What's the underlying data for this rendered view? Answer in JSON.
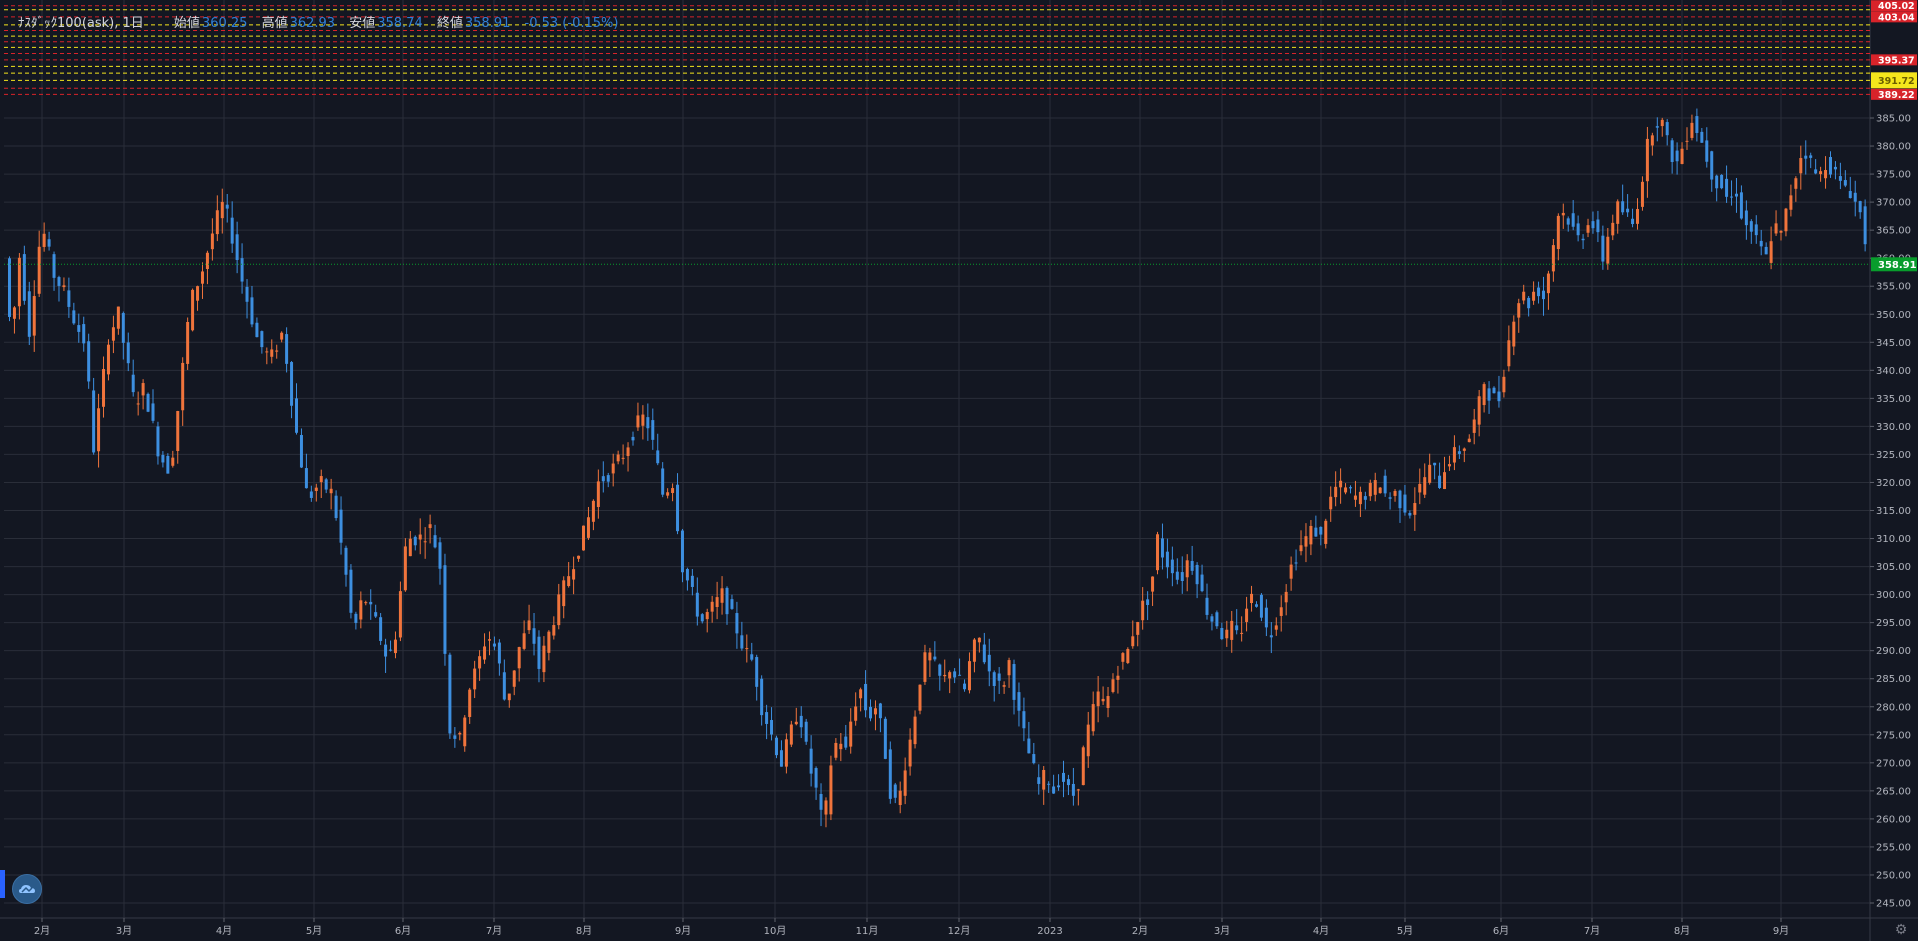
{
  "legend": {
    "title": "ﾅｽﾀﾞｯｸ100(ask), 1日",
    "open_label": "始値",
    "open_value": "360.25",
    "high_label": "高値",
    "high_value": "362.93",
    "low_label": "安値",
    "low_value": "358.74",
    "close_label": "終値",
    "close_value": "358.91",
    "change_value": "-0.53 (-0.15%)"
  },
  "colors": {
    "background": "#131722",
    "up": "#f0743c",
    "down": "#3d8fe0",
    "grid": "#2a2e39",
    "current_price": "#089c2c",
    "red_level": "#d8232a",
    "yellow_level": "#f5e61c"
  },
  "chart_data": {
    "type": "candlestick",
    "ylim": [
      242,
      405.5
    ],
    "y_ticks": [
      "245.00",
      "250.00",
      "255.00",
      "260.00",
      "265.00",
      "270.00",
      "275.00",
      "280.00",
      "285.00",
      "290.00",
      "295.00",
      "300.00",
      "305.00",
      "310.00",
      "315.00",
      "320.00",
      "325.00",
      "330.00",
      "335.00",
      "340.00",
      "345.00",
      "350.00",
      "355.00",
      "360.00",
      "365.00",
      "370.00",
      "375.00",
      "380.00",
      "385.00"
    ],
    "x_ticks": [
      "2月",
      "3月",
      "4月",
      "5月",
      "6月",
      "7月",
      "8月",
      "9月",
      "10月",
      "11月",
      "12月",
      "2023",
      "2月",
      "3月",
      "4月",
      "5月",
      "6月",
      "7月",
      "8月",
      "9月"
    ],
    "current_price": "358.91",
    "price_labels": [
      {
        "text": "405.02",
        "price": 405.02,
        "kind": "red"
      },
      {
        "text": "403.04",
        "price": 403.04,
        "kind": "red"
      },
      {
        "text": "395.37",
        "price": 395.37,
        "kind": "red"
      },
      {
        "text": "391.72",
        "price": 391.72,
        "kind": "yellow"
      },
      {
        "text": "389.22",
        "price": 389.22,
        "kind": "red"
      }
    ],
    "level_lines": [
      {
        "price": 405.02,
        "kind": "red"
      },
      {
        "price": 404.3,
        "kind": "yellow"
      },
      {
        "price": 403.04,
        "kind": "red"
      },
      {
        "price": 401.6,
        "kind": "yellow"
      },
      {
        "price": 400.6,
        "kind": "red"
      },
      {
        "price": 399.6,
        "kind": "yellow"
      },
      {
        "price": 398.6,
        "kind": "red"
      },
      {
        "price": 397.6,
        "kind": "yellow"
      },
      {
        "price": 396.5,
        "kind": "red"
      },
      {
        "price": 395.37,
        "kind": "red"
      },
      {
        "price": 394.2,
        "kind": "yellow"
      },
      {
        "price": 393.0,
        "kind": "yellow"
      },
      {
        "price": 391.72,
        "kind": "yellow"
      },
      {
        "price": 390.3,
        "kind": "red"
      },
      {
        "price": 389.22,
        "kind": "red"
      }
    ],
    "anchors": [
      [
        0,
        360
      ],
      [
        6,
        344
      ],
      [
        11,
        362
      ],
      [
        20,
        347
      ],
      [
        30,
        366
      ],
      [
        40,
        357
      ],
      [
        48,
        354
      ],
      [
        58,
        348
      ],
      [
        67,
        344
      ],
      [
        70,
        323
      ],
      [
        77,
        334
      ],
      [
        84,
        346
      ],
      [
        92,
        350
      ],
      [
        105,
        334
      ],
      [
        113,
        337
      ],
      [
        125,
        325
      ],
      [
        134,
        322
      ],
      [
        140,
        333
      ],
      [
        150,
        352
      ],
      [
        160,
        358
      ],
      [
        170,
        366
      ],
      [
        177,
        370
      ],
      [
        185,
        363
      ],
      [
        192,
        356
      ],
      [
        205,
        345
      ],
      [
        215,
        342
      ],
      [
        225,
        347
      ],
      [
        235,
        330
      ],
      [
        245,
        317
      ],
      [
        255,
        320
      ],
      [
        265,
        318
      ],
      [
        275,
        305
      ],
      [
        282,
        293
      ],
      [
        290,
        300
      ],
      [
        300,
        295
      ],
      [
        310,
        288
      ],
      [
        316,
        293
      ],
      [
        325,
        310
      ],
      [
        335,
        310
      ],
      [
        345,
        312
      ],
      [
        352,
        305
      ],
      [
        360,
        276
      ],
      [
        368,
        274
      ],
      [
        375,
        283
      ],
      [
        382,
        287
      ],
      [
        390,
        293
      ],
      [
        398,
        290
      ],
      [
        405,
        280
      ],
      [
        415,
        290
      ],
      [
        425,
        295
      ],
      [
        432,
        287
      ],
      [
        440,
        293
      ],
      [
        450,
        300
      ],
      [
        460,
        306
      ],
      [
        470,
        312
      ],
      [
        480,
        320
      ],
      [
        490,
        322
      ],
      [
        500,
        325
      ],
      [
        510,
        330
      ],
      [
        518,
        332
      ],
      [
        525,
        326
      ],
      [
        532,
        318
      ],
      [
        540,
        320
      ],
      [
        548,
        305
      ],
      [
        556,
        300
      ],
      [
        563,
        295
      ],
      [
        570,
        297
      ],
      [
        580,
        300
      ],
      [
        590,
        295
      ],
      [
        598,
        290
      ],
      [
        605,
        288
      ],
      [
        612,
        280
      ],
      [
        620,
        275
      ],
      [
        628,
        270
      ],
      [
        635,
        275
      ],
      [
        642,
        280
      ],
      [
        650,
        270
      ],
      [
        656,
        265
      ],
      [
        662,
        258
      ],
      [
        668,
        270
      ],
      [
        674,
        275
      ],
      [
        680,
        272
      ],
      [
        686,
        280
      ],
      [
        692,
        283
      ],
      [
        698,
        278
      ],
      [
        704,
        280
      ],
      [
        710,
        275
      ],
      [
        716,
        265
      ],
      [
        722,
        262
      ],
      [
        728,
        270
      ],
      [
        734,
        276
      ],
      [
        740,
        285
      ],
      [
        746,
        290
      ],
      [
        752,
        287
      ],
      [
        758,
        284
      ],
      [
        764,
        287
      ],
      [
        770,
        285
      ],
      [
        776,
        283
      ],
      [
        782,
        290
      ],
      [
        788,
        292
      ],
      [
        794,
        287
      ],
      [
        800,
        285
      ],
      [
        806,
        283
      ],
      [
        812,
        288
      ],
      [
        818,
        280
      ],
      [
        824,
        275
      ],
      [
        830,
        270
      ],
      [
        836,
        266
      ],
      [
        842,
        268
      ],
      [
        848,
        265
      ],
      [
        854,
        268
      ],
      [
        860,
        265
      ],
      [
        866,
        264
      ],
      [
        872,
        272
      ],
      [
        878,
        278
      ],
      [
        884,
        282
      ],
      [
        890,
        280
      ],
      [
        896,
        285
      ],
      [
        902,
        288
      ],
      [
        908,
        290
      ],
      [
        914,
        295
      ],
      [
        920,
        298
      ],
      [
        926,
        300
      ],
      [
        932,
        310
      ],
      [
        938,
        306
      ],
      [
        944,
        305
      ],
      [
        950,
        302
      ],
      [
        956,
        306
      ],
      [
        962,
        305
      ],
      [
        968,
        300
      ],
      [
        974,
        296
      ],
      [
        980,
        295
      ],
      [
        986,
        292
      ],
      [
        992,
        294
      ],
      [
        998,
        292
      ],
      [
        1004,
        298
      ],
      [
        1010,
        300
      ],
      [
        1016,
        297
      ],
      [
        1022,
        292
      ],
      [
        1028,
        296
      ],
      [
        1034,
        300
      ],
      [
        1040,
        305
      ],
      [
        1046,
        308
      ],
      [
        1052,
        310
      ],
      [
        1058,
        312
      ],
      [
        1064,
        310
      ],
      [
        1070,
        316
      ],
      [
        1076,
        319
      ],
      [
        1082,
        319
      ],
      [
        1088,
        318
      ],
      [
        1094,
        317
      ],
      [
        1100,
        318
      ],
      [
        1106,
        319
      ],
      [
        1112,
        320
      ],
      [
        1118,
        317
      ],
      [
        1124,
        318
      ],
      [
        1130,
        316
      ],
      [
        1136,
        315
      ],
      [
        1142,
        318
      ],
      [
        1148,
        321
      ],
      [
        1154,
        323
      ],
      [
        1160,
        320
      ],
      [
        1166,
        324
      ],
      [
        1172,
        325
      ],
      [
        1178,
        326
      ],
      [
        1184,
        328
      ],
      [
        1190,
        332
      ],
      [
        1196,
        338
      ],
      [
        1202,
        335
      ],
      [
        1208,
        335
      ],
      [
        1214,
        343
      ],
      [
        1220,
        350
      ],
      [
        1226,
        354
      ],
      [
        1232,
        352
      ],
      [
        1238,
        355
      ],
      [
        1244,
        353
      ],
      [
        1250,
        360
      ],
      [
        1256,
        368
      ],
      [
        1262,
        368
      ],
      [
        1268,
        365
      ],
      [
        1274,
        363
      ],
      [
        1280,
        367
      ],
      [
        1286,
        365
      ],
      [
        1292,
        360
      ],
      [
        1298,
        366
      ],
      [
        1304,
        369
      ],
      [
        1310,
        368
      ],
      [
        1316,
        366
      ],
      [
        1322,
        372
      ],
      [
        1328,
        380
      ],
      [
        1334,
        385
      ],
      [
        1340,
        384
      ],
      [
        1346,
        379
      ],
      [
        1352,
        377
      ],
      [
        1358,
        381
      ],
      [
        1364,
        385
      ],
      [
        1370,
        382
      ],
      [
        1376,
        378
      ],
      [
        1382,
        374
      ],
      [
        1388,
        373
      ],
      [
        1394,
        370
      ],
      [
        1400,
        372
      ],
      [
        1406,
        366
      ],
      [
        1412,
        365
      ],
      [
        1418,
        362
      ],
      [
        1424,
        360
      ],
      [
        1430,
        366
      ],
      [
        1436,
        364
      ],
      [
        1442,
        370
      ],
      [
        1448,
        375
      ],
      [
        1454,
        380
      ],
      [
        1460,
        377
      ],
      [
        1466,
        374
      ],
      [
        1472,
        377
      ],
      [
        1478,
        376
      ],
      [
        1484,
        373
      ],
      [
        1490,
        373
      ],
      [
        1496,
        370
      ],
      [
        1500,
        368
      ],
      [
        1506,
        361
      ],
      [
        1510,
        359
      ]
    ],
    "grid": true
  }
}
